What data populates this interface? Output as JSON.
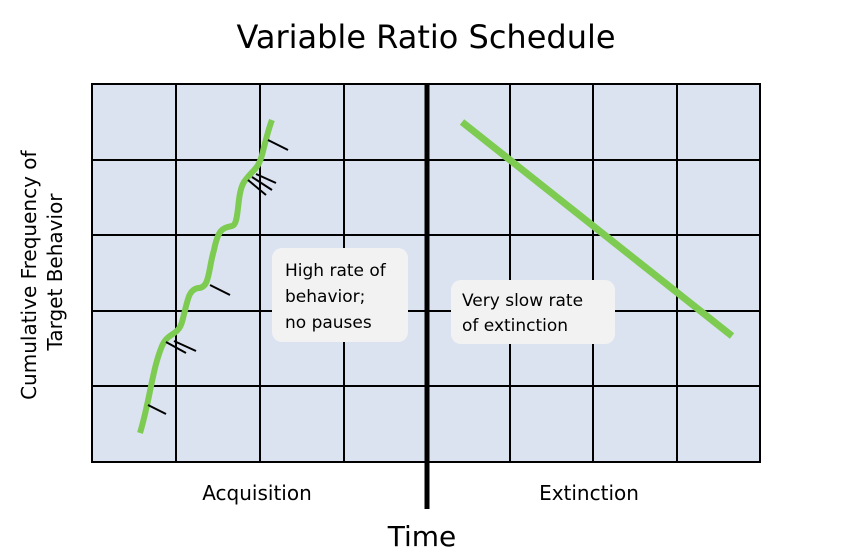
{
  "title": "Variable Ratio Schedule",
  "y_axis_label": [
    "Cumulative Frequency of",
    "Target Behavior"
  ],
  "x_axis_label": "Time",
  "sections": [
    {
      "label": "Acquisition",
      "note": [
        "High rate of",
        "behavior;",
        "no pauses"
      ]
    },
    {
      "label": "Extinction",
      "note": [
        "Very slow rate",
        "of extinction"
      ]
    }
  ]
}
